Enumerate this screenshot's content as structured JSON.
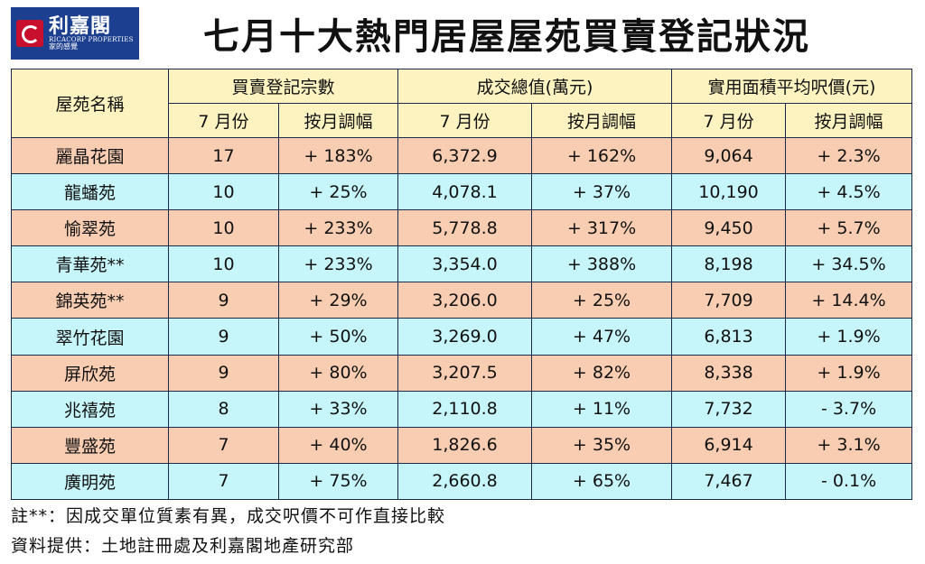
{
  "logo": {
    "name_cn": "利嘉閣",
    "name_en": "RICACORP PROPERTIES",
    "slogan": "家的感覺"
  },
  "title": "七月十大熱門居屋屋苑買賣登記狀況",
  "table": {
    "col_estate": "屋苑名稱",
    "groups": [
      "買賣登記宗數",
      "成交總值(萬元)",
      "實用面積平均呎價(元)"
    ],
    "sub_headers": [
      "7 月份",
      "按月調幅",
      "7 月份",
      "按月調幅",
      "7 月份",
      "按月調幅"
    ],
    "rows": [
      {
        "name": "麗晶花園",
        "reg": "17",
        "reg_chg": "+ 183%",
        "value": "6,372.9",
        "value_chg": "+ 162%",
        "psf": "9,064",
        "psf_chg": "+ 2.3%"
      },
      {
        "name": "龍蟠苑",
        "reg": "10",
        "reg_chg": "+ 25%",
        "value": "4,078.1",
        "value_chg": "+ 37%",
        "psf": "10,190",
        "psf_chg": "+ 4.5%"
      },
      {
        "name": "愉翠苑",
        "reg": "10",
        "reg_chg": "+ 233%",
        "value": "5,778.8",
        "value_chg": "+ 317%",
        "psf": "9,450",
        "psf_chg": "+ 5.7%"
      },
      {
        "name": "青華苑**",
        "reg": "10",
        "reg_chg": "+ 233%",
        "value": "3,354.0",
        "value_chg": "+ 388%",
        "psf": "8,198",
        "psf_chg": "+ 34.5%"
      },
      {
        "name": "錦英苑**",
        "reg": "9",
        "reg_chg": "+ 29%",
        "value": "3,206.0",
        "value_chg": "+ 25%",
        "psf": "7,709",
        "psf_chg": "+ 14.4%"
      },
      {
        "name": "翠竹花園",
        "reg": "9",
        "reg_chg": "+ 50%",
        "value": "3,269.0",
        "value_chg": "+ 47%",
        "psf": "6,813",
        "psf_chg": "+ 1.9%"
      },
      {
        "name": "屏欣苑",
        "reg": "9",
        "reg_chg": "+ 80%",
        "value": "3,207.5",
        "value_chg": "+ 82%",
        "psf": "8,338",
        "psf_chg": "+ 1.9%"
      },
      {
        "name": "兆禧苑",
        "reg": "8",
        "reg_chg": "+ 33%",
        "value": "2,110.8",
        "value_chg": "+ 11%",
        "psf": "7,732",
        "psf_chg": "- 3.7%"
      },
      {
        "name": "豐盛苑",
        "reg": "7",
        "reg_chg": "+ 40%",
        "value": "1,826.6",
        "value_chg": "+ 35%",
        "psf": "6,914",
        "psf_chg": "+ 3.1%"
      },
      {
        "name": "廣明苑",
        "reg": "7",
        "reg_chg": "+ 75%",
        "value": "2,660.8",
        "value_chg": "+ 65%",
        "psf": "7,467",
        "psf_chg": "- 0.1%"
      }
    ]
  },
  "notes": {
    "footnote": "註**：因成交單位質素有異，成交呎價不可作直接比較",
    "source": "資料提供：土地註冊處及利嘉閣地產研究部"
  },
  "colors": {
    "header_bg": "#fdf3c0",
    "row_peach": "#f8cdb2",
    "row_cyan": "#c6f5fa",
    "logo_blue": "#1d3f8f",
    "logo_red": "#c8102e"
  }
}
